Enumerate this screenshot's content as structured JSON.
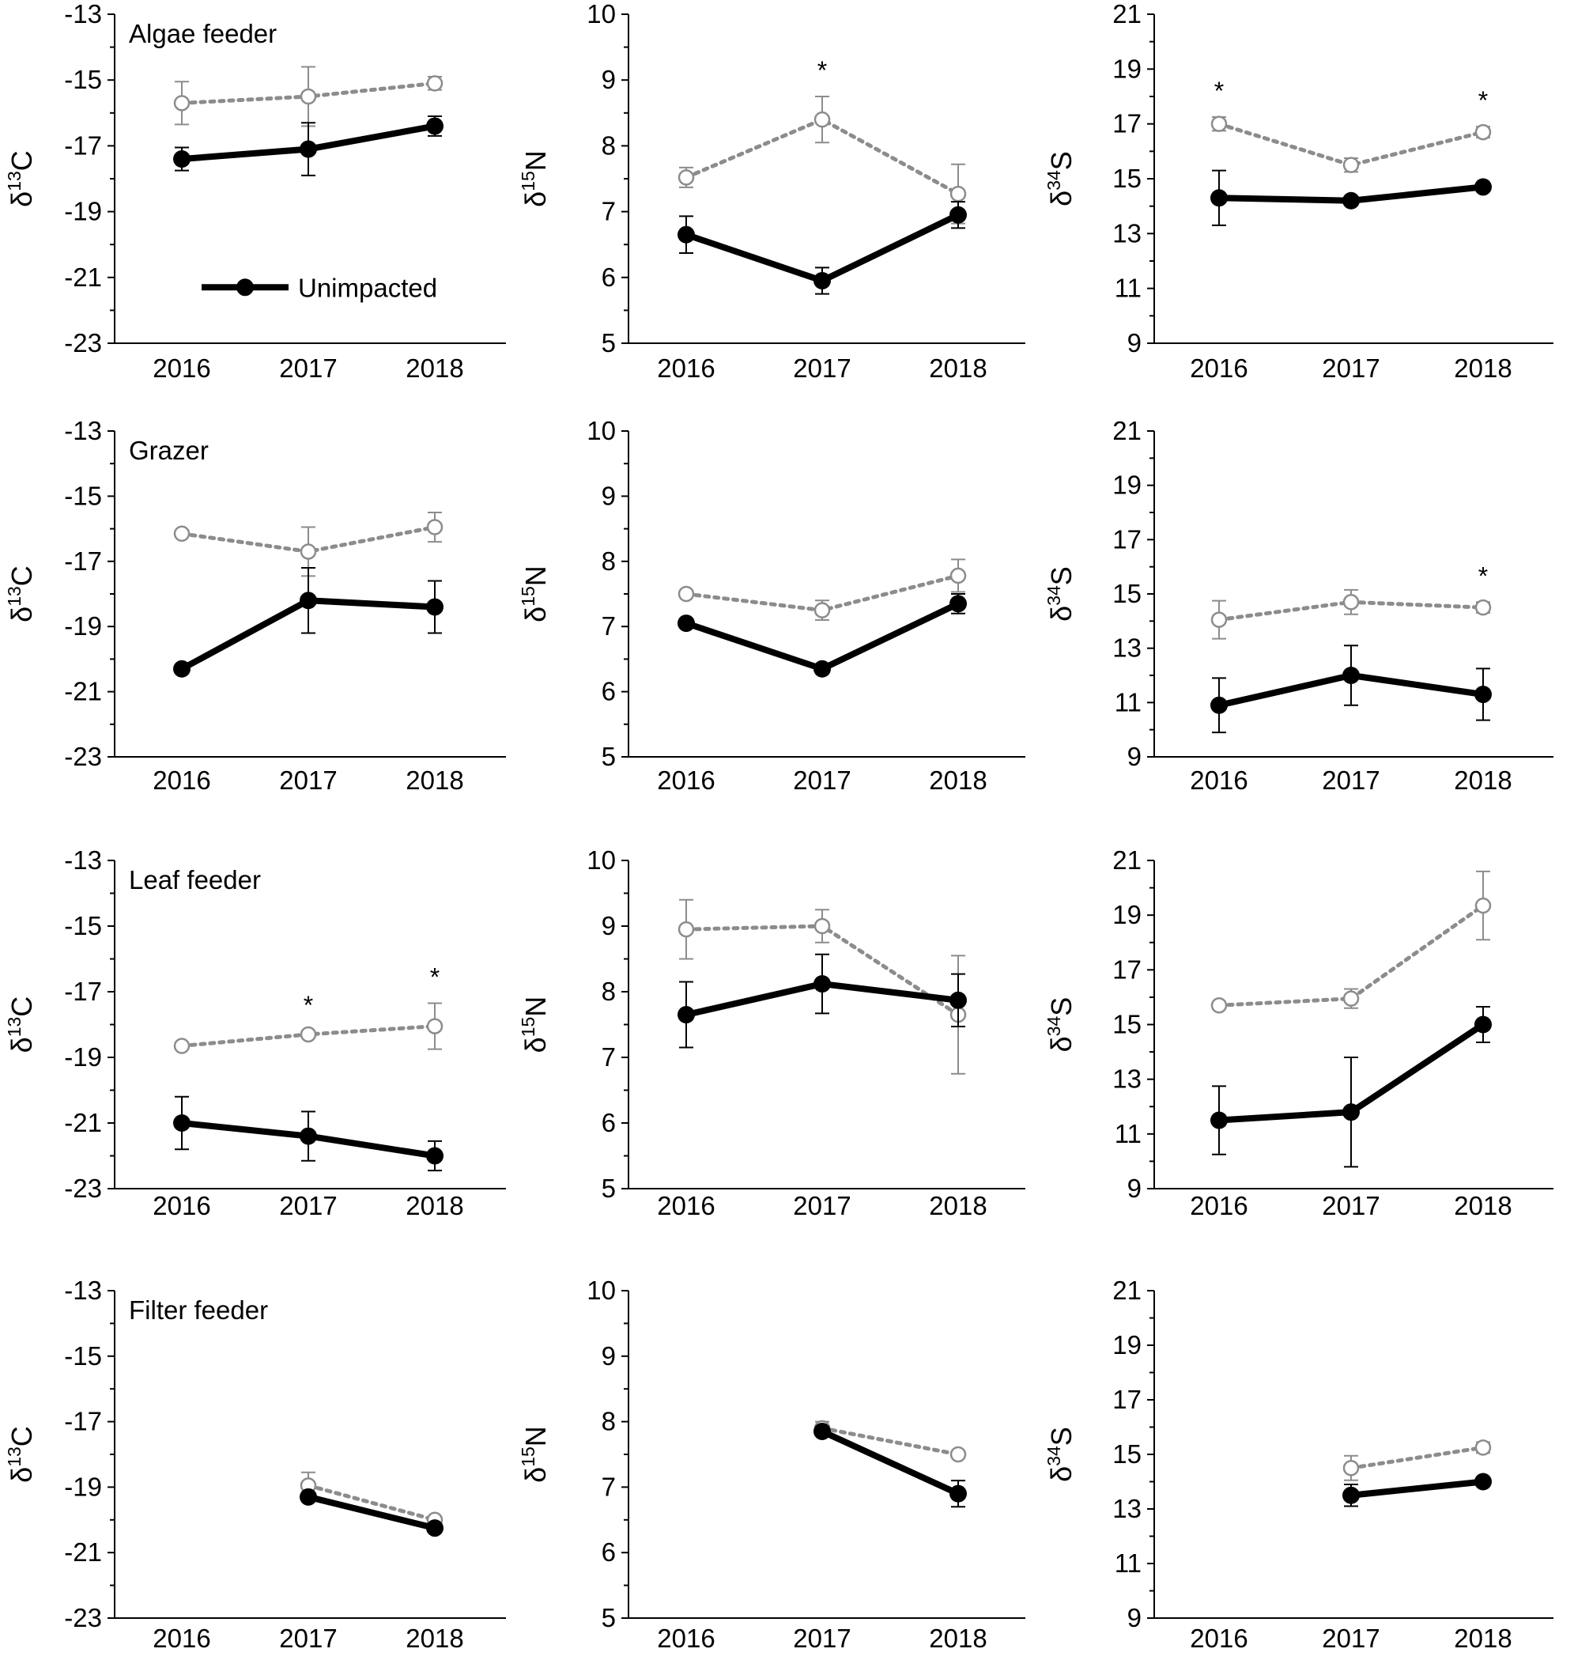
{
  "legend": {
    "label": "Unimpacted"
  },
  "colors": {
    "unimpacted": "#000000",
    "impacted": "#8c8c8c",
    "axis": "#000000"
  },
  "chart_data": [
    {
      "type": "line",
      "id": "algae-c",
      "title": "Algae feeder",
      "ylabel": "δ13C",
      "ylabel_base": "δ",
      "ylabel_sup": "13",
      "ylabel_elem": "C",
      "x": [
        "2016",
        "2017",
        "2018"
      ],
      "ylim": [
        -23,
        -13
      ],
      "yticks": [
        "-23",
        "-21",
        "-19",
        "-17",
        "-15",
        "-13"
      ],
      "series": [
        {
          "name": "Unimpacted",
          "values": [
            -17.4,
            -17.1,
            -16.4
          ],
          "err": [
            0.35,
            0.8,
            0.3
          ]
        },
        {
          "values": [
            -15.7,
            -15.5,
            -15.1
          ],
          "err": [
            0.65,
            0.9,
            0.2
          ]
        }
      ],
      "stars": [
        "",
        "",
        ""
      ],
      "legend": true
    },
    {
      "type": "line",
      "id": "algae-n",
      "ylabel": "δ15N",
      "ylabel_base": "δ",
      "ylabel_sup": "15",
      "ylabel_elem": "N",
      "x": [
        "2016",
        "2017",
        "2018"
      ],
      "ylim": [
        5,
        10
      ],
      "yticks": [
        "5",
        "6",
        "7",
        "8",
        "9",
        "10"
      ],
      "series": [
        {
          "name": "Unimpacted",
          "values": [
            6.65,
            5.95,
            6.95
          ],
          "err": [
            0.28,
            0.2,
            0.2
          ]
        },
        {
          "values": [
            7.52,
            8.4,
            7.27
          ],
          "err": [
            0.15,
            0.35,
            0.45
          ]
        }
      ],
      "stars": [
        "",
        "*",
        ""
      ]
    },
    {
      "type": "line",
      "id": "algae-s",
      "ylabel": "δ34S",
      "ylabel_base": "δ",
      "ylabel_sup": "34",
      "ylabel_elem": "S",
      "x": [
        "2016",
        "2017",
        "2018"
      ],
      "ylim": [
        9,
        21
      ],
      "yticks": [
        "9",
        "11",
        "13",
        "15",
        "17",
        "19",
        "21"
      ],
      "series": [
        {
          "name": "Unimpacted",
          "values": [
            14.3,
            14.2,
            14.7
          ],
          "err": [
            1.0,
            0.15,
            0.15
          ]
        },
        {
          "values": [
            17.0,
            15.5,
            16.7
          ],
          "err": [
            0.25,
            0.25,
            0.2
          ]
        }
      ],
      "stars": [
        "*",
        "",
        "*"
      ]
    },
    {
      "type": "line",
      "id": "grazer-c",
      "title": "Grazer",
      "ylabel": "δ13C",
      "ylabel_base": "δ",
      "ylabel_sup": "13",
      "ylabel_elem": "C",
      "x": [
        "2016",
        "2017",
        "2018"
      ],
      "ylim": [
        -23,
        -13
      ],
      "yticks": [
        "-23",
        "-21",
        "-19",
        "-17",
        "-15",
        "-13"
      ],
      "series": [
        {
          "name": "Unimpacted",
          "values": [
            -20.3,
            -18.2,
            -18.4
          ],
          "err": [
            0.1,
            1.0,
            0.8
          ]
        },
        {
          "values": [
            -16.15,
            -16.7,
            -15.95
          ],
          "err": [
            0.1,
            0.75,
            0.45
          ]
        }
      ],
      "stars": [
        "",
        "",
        ""
      ]
    },
    {
      "type": "line",
      "id": "grazer-n",
      "ylabel": "δ15N",
      "ylabel_base": "δ",
      "ylabel_sup": "15",
      "ylabel_elem": "N",
      "x": [
        "2016",
        "2017",
        "2018"
      ],
      "ylim": [
        5,
        10
      ],
      "yticks": [
        "5",
        "6",
        "7",
        "8",
        "9",
        "10"
      ],
      "series": [
        {
          "name": "Unimpacted",
          "values": [
            7.05,
            6.35,
            7.35
          ],
          "err": [
            0.03,
            0.03,
            0.15
          ]
        },
        {
          "values": [
            7.5,
            7.25,
            7.78
          ],
          "err": [
            0.03,
            0.15,
            0.25
          ]
        }
      ],
      "stars": [
        "",
        "",
        ""
      ]
    },
    {
      "type": "line",
      "id": "grazer-s",
      "ylabel": "δ34S",
      "ylabel_base": "δ",
      "ylabel_sup": "34",
      "ylabel_elem": "S",
      "x": [
        "2016",
        "2017",
        "2018"
      ],
      "ylim": [
        9,
        21
      ],
      "yticks": [
        "9",
        "11",
        "13",
        "15",
        "17",
        "19",
        "21"
      ],
      "series": [
        {
          "name": "Unimpacted",
          "values": [
            10.9,
            12.0,
            11.3
          ],
          "err": [
            1.0,
            1.1,
            0.95
          ]
        },
        {
          "values": [
            14.05,
            14.7,
            14.5
          ],
          "err": [
            0.7,
            0.45,
            0.2
          ]
        }
      ],
      "stars": [
        "",
        "",
        "*"
      ]
    },
    {
      "type": "line",
      "id": "leaf-c",
      "title": "Leaf feeder",
      "ylabel": "δ13C",
      "ylabel_base": "δ",
      "ylabel_sup": "13",
      "ylabel_elem": "C",
      "x": [
        "2016",
        "2017",
        "2018"
      ],
      "ylim": [
        -23,
        -13
      ],
      "yticks": [
        "-23",
        "-21",
        "-19",
        "-17",
        "-15",
        "-13"
      ],
      "series": [
        {
          "name": "Unimpacted",
          "values": [
            -21.0,
            -21.4,
            -22.0
          ],
          "err": [
            0.8,
            0.75,
            0.45
          ]
        },
        {
          "values": [
            -18.65,
            -18.3,
            -18.05
          ],
          "err": [
            0.1,
            0.1,
            0.7
          ]
        }
      ],
      "stars": [
        "",
        "*",
        "*"
      ]
    },
    {
      "type": "line",
      "id": "leaf-n",
      "ylabel": "δ15N",
      "ylabel_base": "δ",
      "ylabel_sup": "15",
      "ylabel_elem": "N",
      "x": [
        "2016",
        "2017",
        "2018"
      ],
      "ylim": [
        5,
        10
      ],
      "yticks": [
        "5",
        "6",
        "7",
        "8",
        "9",
        "10"
      ],
      "series": [
        {
          "name": "Unimpacted",
          "values": [
            7.65,
            8.12,
            7.87
          ],
          "err": [
            0.5,
            0.45,
            0.4
          ]
        },
        {
          "values": [
            8.95,
            9.0,
            7.65
          ],
          "err": [
            0.45,
            0.25,
            0.9
          ]
        }
      ],
      "stars": [
        "",
        "",
        ""
      ]
    },
    {
      "type": "line",
      "id": "leaf-s",
      "ylabel": "δ34S",
      "ylabel_base": "δ",
      "ylabel_sup": "34",
      "ylabel_elem": "S",
      "x": [
        "2016",
        "2017",
        "2018"
      ],
      "ylim": [
        9,
        21
      ],
      "yticks": [
        "9",
        "11",
        "13",
        "15",
        "17",
        "19",
        "21"
      ],
      "series": [
        {
          "name": "Unimpacted",
          "values": [
            11.5,
            11.8,
            15.0
          ],
          "err": [
            1.25,
            2.0,
            0.65
          ]
        },
        {
          "values": [
            15.7,
            15.95,
            19.35
          ],
          "err": [
            0.1,
            0.35,
            1.25
          ]
        }
      ],
      "stars": [
        "",
        "",
        ""
      ]
    },
    {
      "type": "line",
      "id": "filter-c",
      "title": "Filter feeder",
      "ylabel": "δ13C",
      "ylabel_base": "δ",
      "ylabel_sup": "13",
      "ylabel_elem": "C",
      "x": [
        "2016",
        "2017",
        "2018"
      ],
      "ylim": [
        -23,
        -13
      ],
      "yticks": [
        "-23",
        "-21",
        "-19",
        "-17",
        "-15",
        "-13"
      ],
      "series": [
        {
          "name": "Unimpacted",
          "values": [
            null,
            -19.3,
            -20.25
          ],
          "err": [
            0,
            0.1,
            0.1
          ]
        },
        {
          "values": [
            null,
            -18.95,
            -20.0
          ],
          "err": [
            0,
            0.4,
            0.05
          ]
        }
      ],
      "stars": [
        "",
        "",
        ""
      ]
    },
    {
      "type": "line",
      "id": "filter-n",
      "ylabel": "δ15N",
      "ylabel_base": "δ",
      "ylabel_sup": "15",
      "ylabel_elem": "N",
      "x": [
        "2016",
        "2017",
        "2018"
      ],
      "ylim": [
        5,
        10
      ],
      "yticks": [
        "5",
        "6",
        "7",
        "8",
        "9",
        "10"
      ],
      "series": [
        {
          "name": "Unimpacted",
          "values": [
            null,
            7.85,
            6.9
          ],
          "err": [
            0,
            0.05,
            0.2
          ]
        },
        {
          "values": [
            null,
            7.9,
            7.5
          ],
          "err": [
            0,
            0.1,
            0.05
          ]
        }
      ],
      "stars": [
        "",
        "",
        ""
      ]
    },
    {
      "type": "line",
      "id": "filter-s",
      "ylabel": "δ34S",
      "ylabel_base": "δ",
      "ylabel_sup": "34",
      "ylabel_elem": "S",
      "x": [
        "2016",
        "2017",
        "2018"
      ],
      "ylim": [
        9,
        21
      ],
      "yticks": [
        "9",
        "11",
        "13",
        "15",
        "17",
        "19",
        "21"
      ],
      "series": [
        {
          "name": "Unimpacted",
          "values": [
            null,
            13.5,
            14.0
          ],
          "err": [
            0,
            0.4,
            0.15
          ]
        },
        {
          "values": [
            null,
            14.5,
            15.25
          ],
          "err": [
            0,
            0.45,
            0.2
          ]
        }
      ],
      "stars": [
        "",
        "",
        ""
      ]
    }
  ]
}
